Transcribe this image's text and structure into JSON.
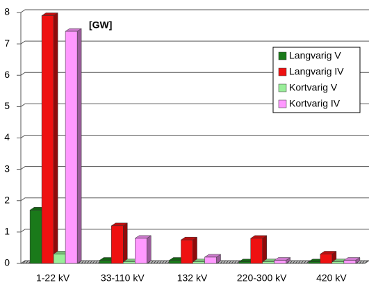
{
  "chart_data": {
    "type": "bar3d",
    "annotation": "[GW]",
    "categories": [
      "1-22 kV",
      "33-110 kV",
      "132 kV",
      "220-300 kV",
      "420 kV"
    ],
    "series": [
      {
        "name": "Langvarig V",
        "color": "#1a7a1a",
        "values": [
          1.7,
          0.1,
          0.1,
          0.05,
          0.05
        ]
      },
      {
        "name": "Langvarig IV",
        "color": "#ee1111",
        "values": [
          7.9,
          1.2,
          0.75,
          0.8,
          0.3
        ]
      },
      {
        "name": "Kortvarig V",
        "color": "#99ee99",
        "values": [
          0.3,
          0.05,
          0.05,
          0.05,
          0.05
        ]
      },
      {
        "name": "Kortvarig IV",
        "color": "#ff99ff",
        "values": [
          7.4,
          0.8,
          0.2,
          0.1,
          0.1
        ]
      }
    ],
    "ylim": [
      0,
      8
    ],
    "yticks": [
      0,
      1,
      2,
      3,
      4,
      5,
      6,
      7,
      8
    ],
    "grid": true,
    "legend": "right"
  }
}
